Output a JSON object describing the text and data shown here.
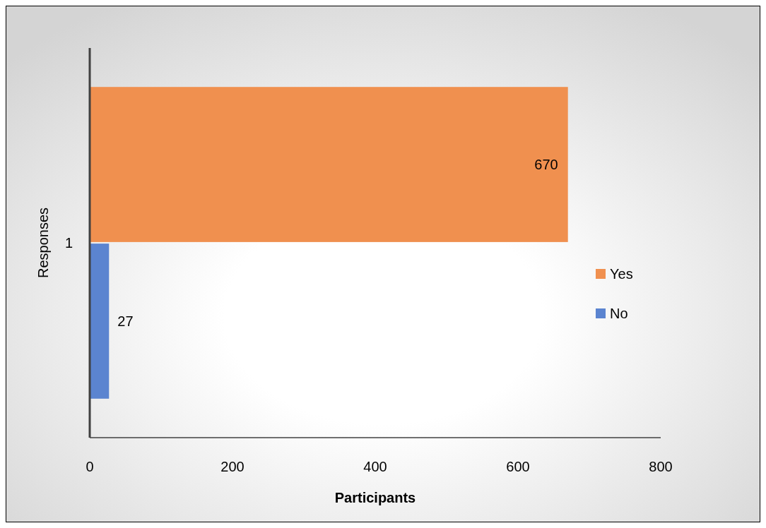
{
  "chart_data": {
    "type": "bar",
    "orientation": "horizontal",
    "categories": [
      "1"
    ],
    "xlabel": "Participants",
    "ylabel": "Responses",
    "series": [
      {
        "name": "Yes",
        "color": "#f0904f",
        "values": [
          670
        ]
      },
      {
        "name": "No",
        "color": "#5b84d0",
        "values": [
          27
        ]
      }
    ],
    "xlim": [
      0,
      800
    ],
    "xticks": [
      0,
      200,
      400,
      600,
      800
    ],
    "data_labels": true,
    "legend": "right"
  }
}
